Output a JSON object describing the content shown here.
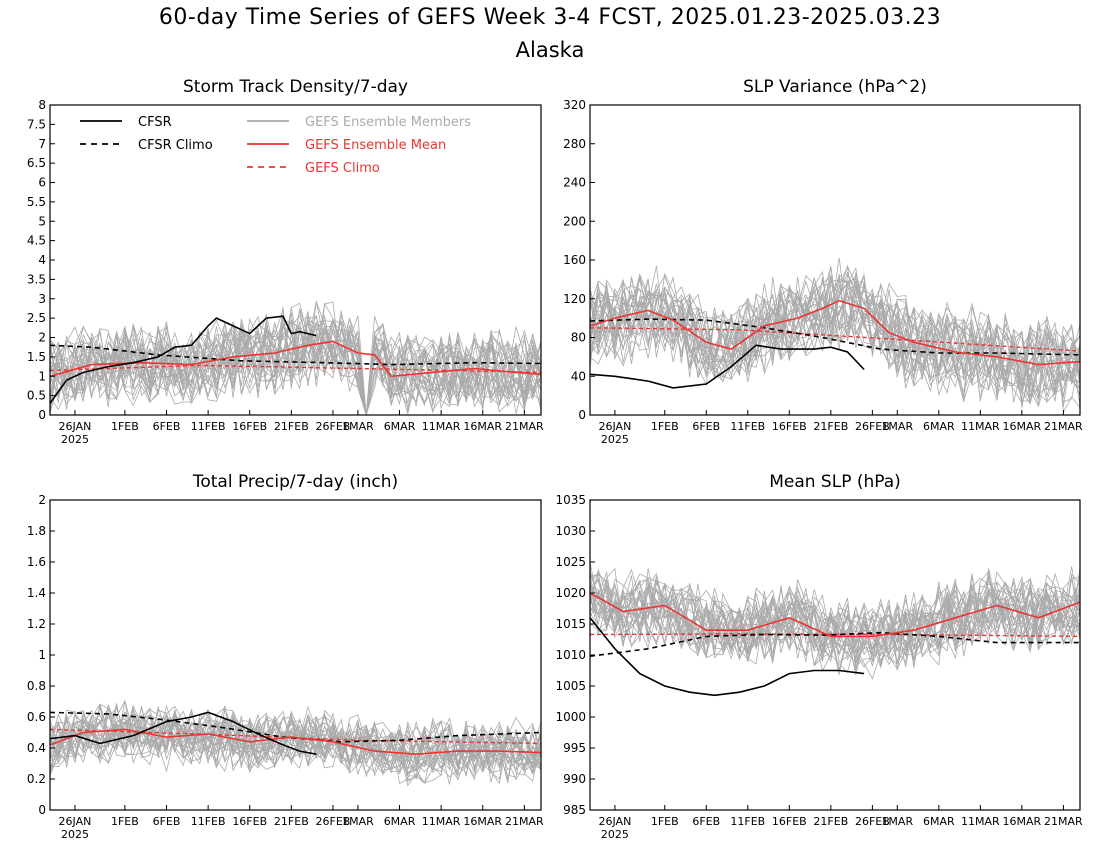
{
  "title": "60-day Time Series of GEFS Week 3-4 FCST, 2025.01.23-2025.03.23",
  "subtitle": "Alaska",
  "colors": {
    "cfsr": "#000000",
    "members": "#aaaaaa",
    "mean": "#ee3333"
  },
  "legend": {
    "cfsr": "CFSR",
    "cfsr_climo": "CFSR Climo",
    "members": "GEFS Ensemble Members",
    "mean": "GEFS Ensemble Mean",
    "gefs_climo": "GEFS Climo"
  },
  "x_ticks": [
    "26JAN",
    "1FEB",
    "6FEB",
    "11FEB",
    "16FEB",
    "21FEB",
    "26FEB",
    "1MAR",
    "6MAR",
    "11MAR",
    "16MAR",
    "21MAR"
  ],
  "x_year_label": "2025",
  "chart_data": [
    {
      "type": "line",
      "title": "Storm Track Density/7-day",
      "x": [
        "2025-01-23",
        "2025-01-26",
        "2025-02-01",
        "2025-02-06",
        "2025-02-11",
        "2025-02-16",
        "2025-02-21",
        "2025-02-26",
        "2025-03-01",
        "2025-03-06",
        "2025-03-11",
        "2025-03-16",
        "2025-03-21",
        "2025-03-23"
      ],
      "ylim": [
        0,
        8
      ],
      "yticks": [
        "0",
        "0.5",
        "1",
        "1.5",
        "2",
        "2.5",
        "3",
        "3.5",
        "4",
        "4.5",
        "5",
        "5.5",
        "6",
        "6.5",
        "7",
        "7.5",
        "8"
      ],
      "series": [
        {
          "name": "CFSR",
          "x": [
            "2025-01-23",
            "2025-01-25",
            "2025-01-27",
            "2025-01-30",
            "2025-02-02",
            "2025-02-05",
            "2025-02-07",
            "2025-02-09",
            "2025-02-11",
            "2025-02-12",
            "2025-02-14",
            "2025-02-16",
            "2025-02-18",
            "2025-02-20",
            "2025-02-21",
            "2025-02-22",
            "2025-02-24"
          ],
          "values": [
            0.3,
            0.9,
            1.1,
            1.25,
            1.35,
            1.5,
            1.75,
            1.8,
            2.3,
            2.5,
            2.3,
            2.1,
            2.5,
            2.55,
            2.1,
            2.15,
            2.05
          ]
        },
        {
          "name": "CFSR Climo",
          "x": [
            "2025-01-23",
            "2025-01-28",
            "2025-02-05",
            "2025-02-15",
            "2025-02-25",
            "2025-03-05",
            "2025-03-15",
            "2025-03-23"
          ],
          "values": [
            1.8,
            1.75,
            1.55,
            1.4,
            1.35,
            1.3,
            1.35,
            1.33
          ]
        },
        {
          "name": "GEFS Ensemble Mean",
          "x": [
            "2025-01-23",
            "2025-01-28",
            "2025-02-03",
            "2025-02-09",
            "2025-02-14",
            "2025-02-19",
            "2025-02-23",
            "2025-02-26",
            "2025-03-01",
            "2025-03-03",
            "2025-03-05",
            "2025-03-10",
            "2025-03-15",
            "2025-03-20",
            "2025-03-23"
          ],
          "values": [
            1.0,
            1.3,
            1.35,
            1.3,
            1.5,
            1.6,
            1.8,
            1.9,
            1.6,
            1.55,
            1.0,
            1.1,
            1.2,
            1.1,
            1.05
          ]
        },
        {
          "name": "GEFS Climo",
          "x": [
            "2025-01-23",
            "2025-02-10",
            "2025-03-01",
            "2025-03-23"
          ],
          "values": [
            1.15,
            1.28,
            1.2,
            1.1
          ]
        }
      ]
    },
    {
      "type": "line",
      "title": "SLP Variance (hPa^2)",
      "x": [
        "2025-01-23",
        "2025-01-26",
        "2025-02-01",
        "2025-02-06",
        "2025-02-11",
        "2025-02-16",
        "2025-02-21",
        "2025-02-26",
        "2025-03-01",
        "2025-03-06",
        "2025-03-11",
        "2025-03-16",
        "2025-03-21",
        "2025-03-23"
      ],
      "ylim": [
        0,
        320
      ],
      "yticks": [
        "0",
        "40",
        "80",
        "120",
        "160",
        "200",
        "240",
        "280",
        "320"
      ],
      "series": [
        {
          "name": "CFSR",
          "x": [
            "2025-01-23",
            "2025-01-26",
            "2025-01-30",
            "2025-02-02",
            "2025-02-06",
            "2025-02-09",
            "2025-02-12",
            "2025-02-15",
            "2025-02-19",
            "2025-02-21",
            "2025-02-23",
            "2025-02-25"
          ],
          "values": [
            42,
            40,
            35,
            28,
            32,
            50,
            72,
            68,
            68,
            70,
            65,
            47
          ]
        },
        {
          "name": "CFSR Climo",
          "x": [
            "2025-01-23",
            "2025-01-30",
            "2025-02-06",
            "2025-02-13",
            "2025-02-20",
            "2025-02-27",
            "2025-03-06",
            "2025-03-13",
            "2025-03-23"
          ],
          "values": [
            97,
            99,
            98,
            90,
            80,
            68,
            64,
            64,
            62
          ]
        },
        {
          "name": "GEFS Ensemble Mean",
          "x": [
            "2025-01-23",
            "2025-01-26",
            "2025-01-30",
            "2025-02-02",
            "2025-02-06",
            "2025-02-09",
            "2025-02-13",
            "2025-02-17",
            "2025-02-20",
            "2025-02-22",
            "2025-02-25",
            "2025-02-28",
            "2025-03-03",
            "2025-03-08",
            "2025-03-13",
            "2025-03-18",
            "2025-03-23"
          ],
          "values": [
            92,
            100,
            108,
            98,
            75,
            68,
            92,
            100,
            110,
            118,
            110,
            85,
            75,
            65,
            60,
            52,
            55
          ]
        },
        {
          "name": "GEFS Climo",
          "x": [
            "2025-01-23",
            "2025-02-10",
            "2025-03-01",
            "2025-03-23"
          ],
          "values": [
            90,
            88,
            78,
            66
          ]
        }
      ]
    },
    {
      "type": "line",
      "title": "Total Precip/7-day (inch)",
      "x": [
        "2025-01-23",
        "2025-01-26",
        "2025-02-01",
        "2025-02-06",
        "2025-02-11",
        "2025-02-16",
        "2025-02-21",
        "2025-02-26",
        "2025-03-01",
        "2025-03-06",
        "2025-03-11",
        "2025-03-16",
        "2025-03-21",
        "2025-03-23"
      ],
      "ylim": [
        0,
        2
      ],
      "yticks": [
        "0",
        "0.2",
        "0.4",
        "0.6",
        "0.8",
        "1",
        "1.2",
        "1.4",
        "1.6",
        "1.8",
        "2"
      ],
      "series": [
        {
          "name": "CFSR",
          "x": [
            "2025-01-23",
            "2025-01-26",
            "2025-01-29",
            "2025-02-02",
            "2025-02-06",
            "2025-02-09",
            "2025-02-11",
            "2025-02-14",
            "2025-02-17",
            "2025-02-20",
            "2025-02-22",
            "2025-02-24"
          ],
          "values": [
            0.46,
            0.48,
            0.43,
            0.48,
            0.57,
            0.6,
            0.63,
            0.57,
            0.49,
            0.42,
            0.38,
            0.36
          ]
        },
        {
          "name": "CFSR Climo",
          "x": [
            "2025-01-23",
            "2025-01-30",
            "2025-02-06",
            "2025-02-13",
            "2025-02-20",
            "2025-02-27",
            "2025-03-06",
            "2025-03-13",
            "2025-03-23"
          ],
          "values": [
            0.63,
            0.62,
            0.58,
            0.53,
            0.47,
            0.44,
            0.45,
            0.48,
            0.5
          ]
        },
        {
          "name": "GEFS Ensemble Mean",
          "x": [
            "2025-01-23",
            "2025-01-27",
            "2025-02-01",
            "2025-02-06",
            "2025-02-11",
            "2025-02-16",
            "2025-02-21",
            "2025-02-26",
            "2025-03-03",
            "2025-03-08",
            "2025-03-13",
            "2025-03-18",
            "2025-03-23"
          ],
          "values": [
            0.42,
            0.5,
            0.52,
            0.47,
            0.49,
            0.44,
            0.47,
            0.44,
            0.38,
            0.36,
            0.38,
            0.38,
            0.37
          ]
        },
        {
          "name": "GEFS Climo",
          "x": [
            "2025-01-23",
            "2025-02-10",
            "2025-03-01",
            "2025-03-23"
          ],
          "values": [
            0.52,
            0.49,
            0.45,
            0.43
          ]
        }
      ]
    },
    {
      "type": "line",
      "title": "Mean SLP (hPa)",
      "x": [
        "2025-01-23",
        "2025-01-26",
        "2025-02-01",
        "2025-02-06",
        "2025-02-11",
        "2025-02-16",
        "2025-02-21",
        "2025-02-26",
        "2025-03-01",
        "2025-03-06",
        "2025-03-11",
        "2025-03-16",
        "2025-03-21",
        "2025-03-23"
      ],
      "ylim": [
        985,
        1035
      ],
      "yticks": [
        "985",
        "990",
        "995",
        "1000",
        "1005",
        "1010",
        "1015",
        "1020",
        "1025",
        "1030",
        "1035"
      ],
      "series": [
        {
          "name": "CFSR",
          "x": [
            "2025-01-23",
            "2025-01-26",
            "2025-01-29",
            "2025-02-01",
            "2025-02-04",
            "2025-02-07",
            "2025-02-10",
            "2025-02-13",
            "2025-02-16",
            "2025-02-19",
            "2025-02-22",
            "2025-02-25"
          ],
          "values": [
            1016,
            1011,
            1007,
            1005,
            1004,
            1003.5,
            1004,
            1005,
            1007,
            1007.5,
            1007.5,
            1007
          ]
        },
        {
          "name": "CFSR Climo",
          "x": [
            "2025-01-23",
            "2025-01-30",
            "2025-02-06",
            "2025-02-13",
            "2025-02-20",
            "2025-02-27",
            "2025-03-06",
            "2025-03-13",
            "2025-03-23"
          ],
          "values": [
            1009.8,
            1011,
            1013,
            1013.3,
            1013.2,
            1013.6,
            1013,
            1012,
            1012
          ]
        },
        {
          "name": "GEFS Ensemble Mean",
          "x": [
            "2025-01-23",
            "2025-01-27",
            "2025-02-01",
            "2025-02-06",
            "2025-02-11",
            "2025-02-16",
            "2025-02-21",
            "2025-02-26",
            "2025-03-03",
            "2025-03-08",
            "2025-03-13",
            "2025-03-18",
            "2025-03-23"
          ],
          "values": [
            1020,
            1017,
            1018,
            1014,
            1014,
            1016,
            1013,
            1013,
            1014,
            1016,
            1018,
            1016,
            1018.5
          ]
        },
        {
          "name": "GEFS Climo",
          "x": [
            "2025-01-23",
            "2025-02-10",
            "2025-03-01",
            "2025-03-23"
          ],
          "values": [
            1013.3,
            1013.4,
            1013.3,
            1013.0
          ]
        }
      ]
    }
  ]
}
